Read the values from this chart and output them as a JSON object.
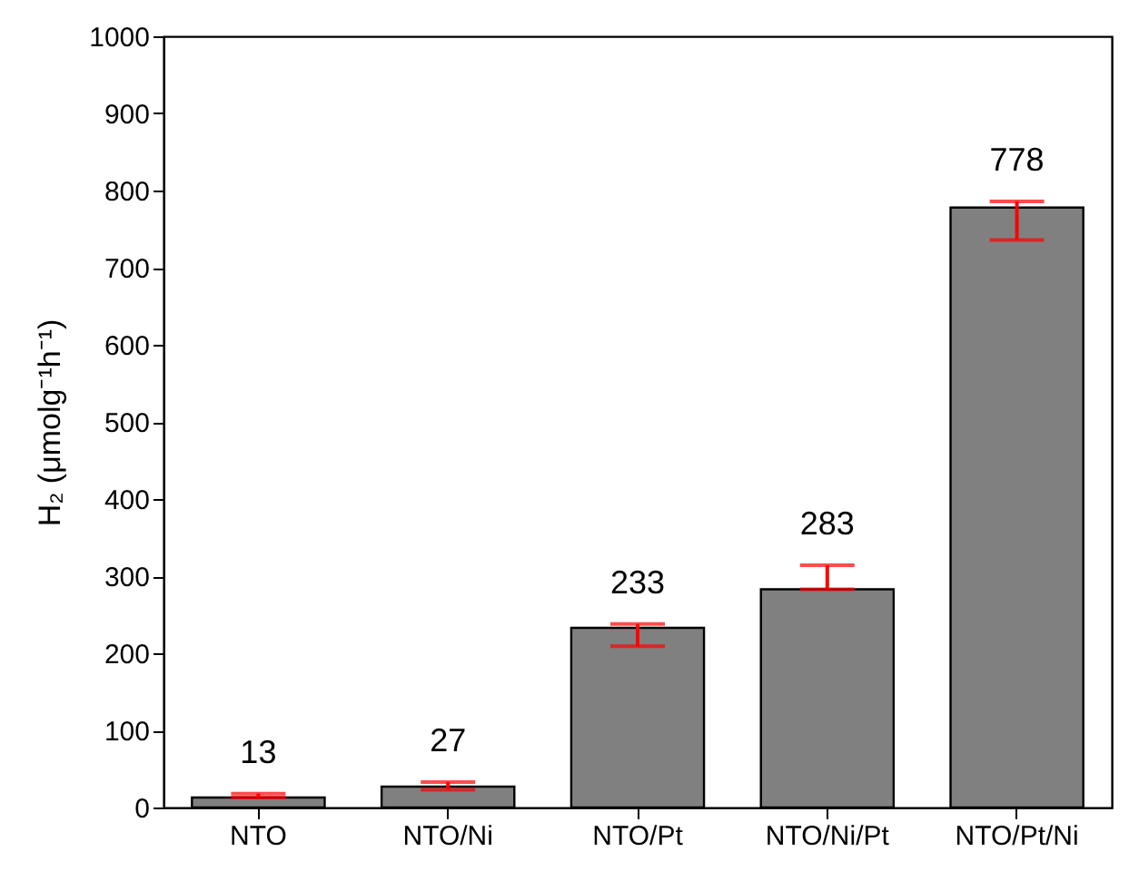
{
  "chart_data": {
    "type": "bar",
    "ylabel": "H₂ (μmolg⁻¹h⁻¹)",
    "categories": [
      "NTO",
      "NTO/Ni",
      "NTO/Pt",
      "NTO/Ni/Pt",
      "NTO/Pt/Ni"
    ],
    "values": [
      13,
      27,
      233,
      283,
      778
    ],
    "errors": [
      [
        13,
        18
      ],
      [
        23,
        33
      ],
      [
        209,
        238
      ],
      [
        283,
        314
      ],
      [
        736,
        786
      ]
    ],
    "color": "#808080",
    "data_labels": true,
    "grid": false,
    "ylim": [
      0,
      1000
    ],
    "yticks": [
      0,
      100,
      200,
      300,
      400,
      500,
      600,
      700,
      800,
      900,
      1000
    ]
  }
}
